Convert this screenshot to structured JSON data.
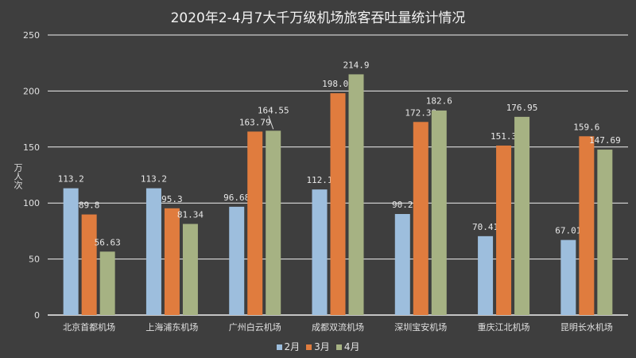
{
  "chart_data": {
    "type": "bar",
    "title": "2020年2-4月7大千万级机场旅客吞吐量统计情况",
    "ylabel": "万人次",
    "xlabel": "",
    "ylim": [
      0,
      250
    ],
    "yticks": [
      0,
      50,
      100,
      150,
      200,
      250
    ],
    "grid": true,
    "legend_position": "bottom",
    "categories": [
      "北京首都机场",
      "上海浦东机场",
      "广州白云机场",
      "成都双流机场",
      "深圳宝安机场",
      "重庆江北机场",
      "昆明长水机场"
    ],
    "series": [
      {
        "name": "2月",
        "color": "#9dbedd",
        "values": [
          113.2,
          113.2,
          96.68,
          112.1,
          90.2,
          70.41,
          67.01
        ]
      },
      {
        "name": "3月",
        "color": "#e07c3e",
        "values": [
          89.8,
          95.3,
          163.79,
          198.02,
          172.38,
          151.3,
          159.6
        ]
      },
      {
        "name": "4月",
        "color": "#a6b283",
        "values": [
          56.63,
          81.34,
          164.55,
          214.9,
          182.6,
          176.95,
          147.69
        ]
      }
    ]
  }
}
